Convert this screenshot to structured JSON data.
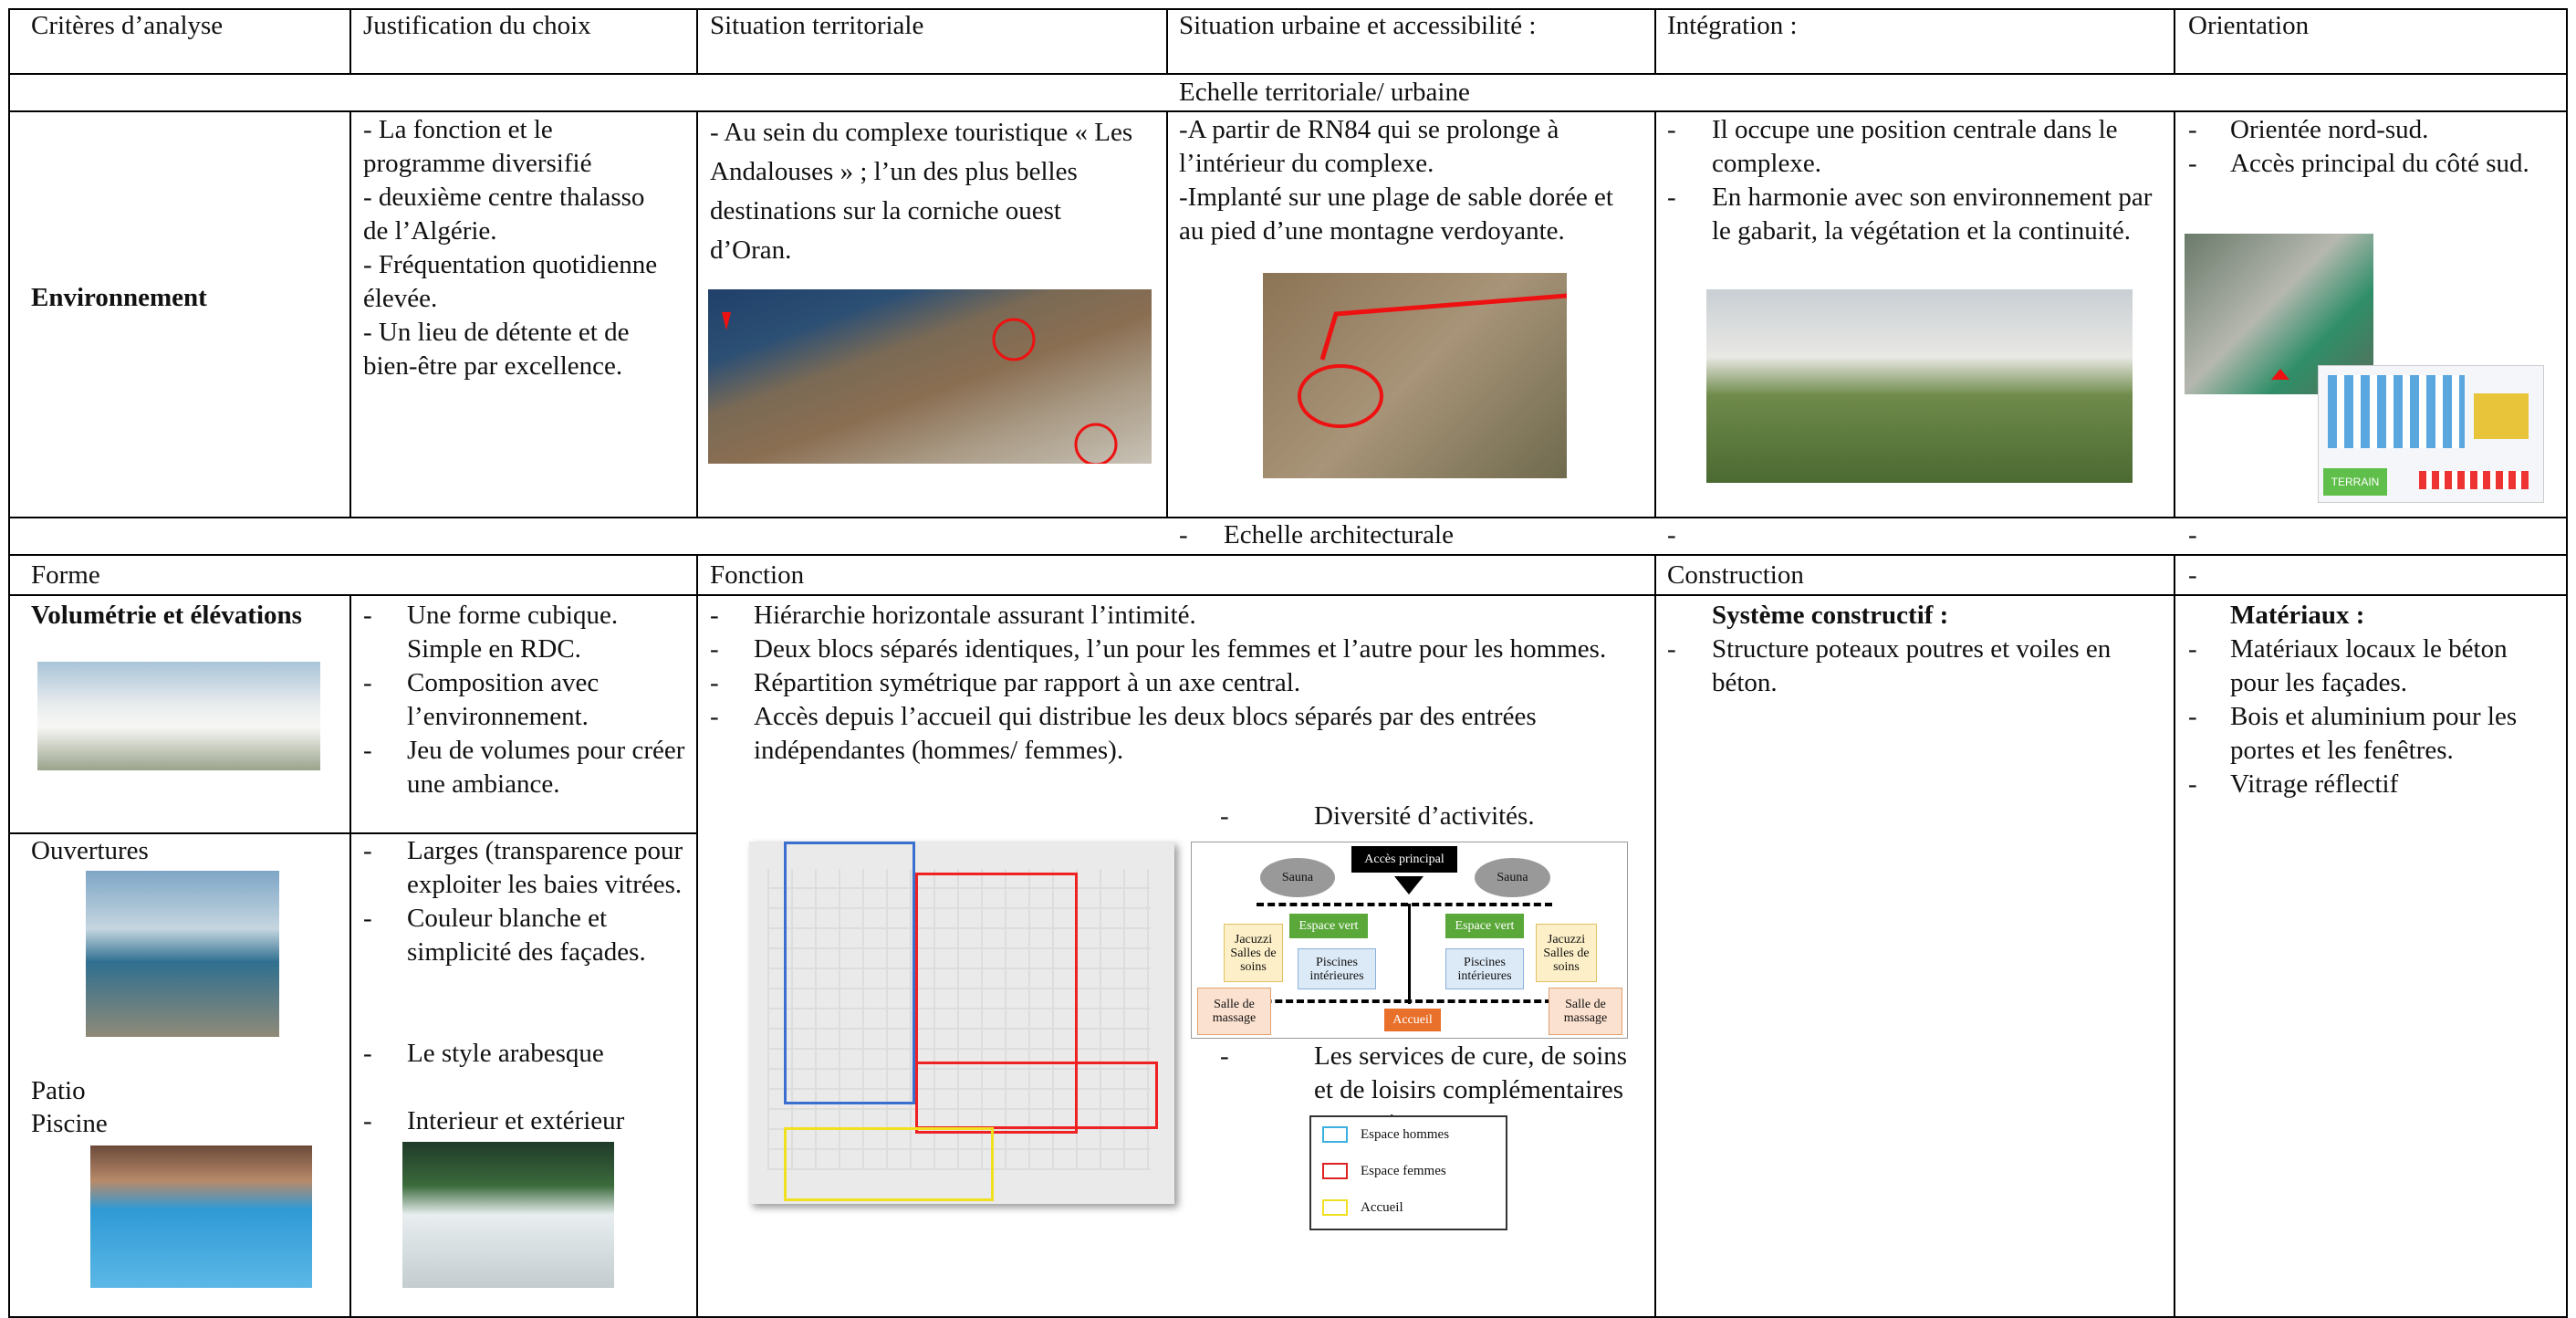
{
  "header": {
    "cells": [
      "Critères d’analyse",
      "Justification du choix",
      "Situation territoriale",
      "Situation urbaine et accessibilité :",
      "Intégration :",
      "Orientation"
    ]
  },
  "bullet": "-",
  "territorial_scale": "Echelle territoriale/ urbaine",
  "environment": {
    "label": "Environnement",
    "justification": [
      "- La fonction et le programme diversifié",
      "- deuxième centre thalasso de l’Algérie.",
      "- Fréquentation quotidienne élevée.",
      "- Un lieu de détente et de bien-être par excellence."
    ],
    "territorial": "-  Au sein du complexe touristique « Les Andalouses » ; l’un des plus belles destinations sur la corniche ouest d’Oran.",
    "urban": [
      "-A partir de RN84 qui se prolonge à l’intérieur du complexe.",
      "-Implanté sur une plage de sable dorée et au pied d’une montagne verdoyante."
    ],
    "integration": [
      "Il occupe une position centrale dans le complexe.",
      "En harmonie avec son environnement par le gabarit, la végétation et la continuité."
    ],
    "orientation": [
      "Orientée nord-sud.",
      "Accès principal du côté sud."
    ],
    "terrain_label": "TERRAIN"
  },
  "architectural_scale": {
    "title": "Echelle architecturale",
    "integration": "-",
    "orientation": "-"
  },
  "subheaders": {
    "form": "Forme",
    "function": "Fonction",
    "construction": "Construction",
    "orientation": "-"
  },
  "volumetry": {
    "label": "Volumétrie et élévations",
    "items": [
      "Une forme cubique. Simple en RDC.",
      "Composition avec l’environnement.",
      "Jeu de volumes pour créer une ambiance."
    ]
  },
  "openings": {
    "label": "Ouvertures",
    "items": [
      "Larges (transparence pour exploiter les baies vitrées.",
      "Couleur blanche et simplicité des façades."
    ],
    "style": [
      "Le style arabesque"
    ]
  },
  "patio": {
    "label": "Patio",
    "pool": "Piscine",
    "items": [
      "Interieur et extérieur"
    ]
  },
  "function": {
    "items": [
      "Hiérarchie horizontale assurant l’intimité.",
      "Deux blocs séparés identiques, l’un pour les femmes et l’autre pour les hommes.",
      "Répartition symétrique par rapport à un axe central.",
      "Accès depuis l’accueil qui distribue les deux blocs séparés par des entrées indépendantes (hommes/ femmes)."
    ],
    "activities": [
      "Diversité d’activités."
    ],
    "services": [
      "Les services de cure, de soins et de loisirs complémentaires au touriste."
    ],
    "diagram": {
      "main_access": "Accès principal",
      "sauna_left": "Sauna",
      "sauna_right": "Sauna",
      "green_left": "Espace vert",
      "green_right": "Espace vert",
      "jacuzzi_left": "Jacuzzi Salles de soins",
      "jacuzzi_right": "Jacuzzi Salles de soins",
      "pools_left": "Piscines intérieures",
      "pools_right": "Piscines intérieures",
      "massage_left": "Salle de massage",
      "massage_right": "Salle de massage",
      "reception": "Accueil"
    },
    "legend": [
      "Espace hommes",
      "Espace femmes",
      "Accueil"
    ]
  },
  "construction": {
    "title": "Système constructif :",
    "items": [
      "Structure poteaux poutres et voiles en béton."
    ]
  },
  "materials": {
    "title": "Matériaux :",
    "items": [
      "Matériaux locaux le béton pour les façades.",
      "Bois et aluminium pour les portes et les fenêtres.",
      "Vitrage réflectif"
    ]
  }
}
